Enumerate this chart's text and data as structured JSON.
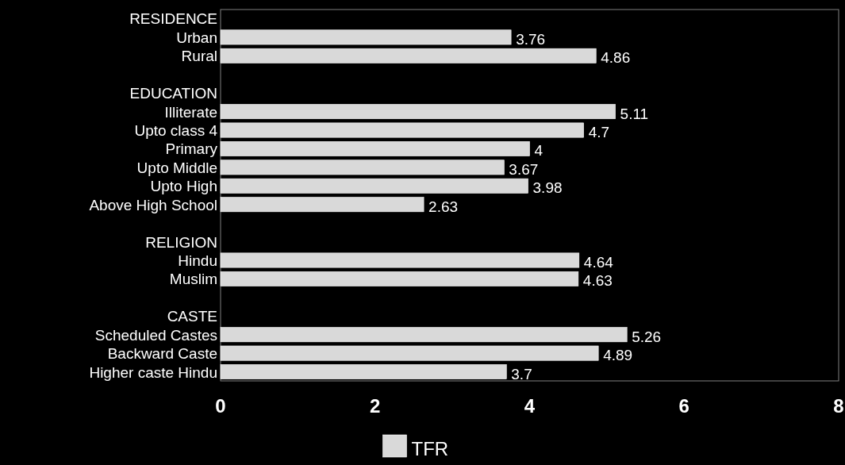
{
  "chart_data": {
    "type": "bar",
    "orientation": "horizontal",
    "categories": [
      "RESIDENCE",
      "Urban",
      "Rural",
      null,
      "EDUCATION",
      "Illiterate",
      "Upto class 4",
      "Primary",
      "Upto Middle",
      "Upto High",
      "Above High School",
      null,
      "RELIGION",
      "Hindu",
      "Muslim",
      null,
      "CASTE",
      "Scheduled Castes",
      "Backward Caste",
      "Higher caste Hindu"
    ],
    "series": [
      {
        "name": "TFR",
        "color": "#d9d9d9",
        "values": [
          null,
          3.76,
          4.86,
          null,
          null,
          5.11,
          4.7,
          4,
          3.67,
          3.98,
          2.63,
          null,
          null,
          4.64,
          4.63,
          null,
          null,
          5.26,
          4.89,
          3.7
        ]
      }
    ],
    "xlim": [
      0,
      8
    ],
    "xticks": [
      0,
      2,
      4,
      6,
      8
    ],
    "data_labels": true,
    "legend": "bottom",
    "grid": false
  }
}
